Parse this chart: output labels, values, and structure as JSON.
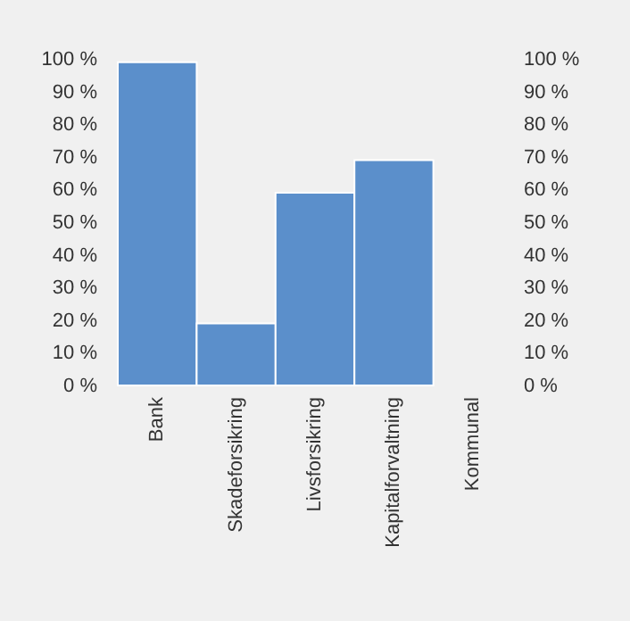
{
  "chart_data": {
    "type": "bar",
    "categories": [
      "Bank",
      "Skadeforsikring",
      "Livsforsikring",
      "Kapitalforvaltning",
      "Kommunal"
    ],
    "values": [
      99,
      19,
      59,
      69,
      null
    ],
    "color": "#5b8fcb",
    "ylim": [
      0,
      100
    ],
    "yticks": [
      {
        "value": 0,
        "label": "0 %"
      },
      {
        "value": 10,
        "label": "10 %"
      },
      {
        "value": 20,
        "label": "20 %"
      },
      {
        "value": 30,
        "label": "30 %"
      },
      {
        "value": 40,
        "label": "40 %"
      },
      {
        "value": 50,
        "label": "50 %"
      },
      {
        "value": 60,
        "label": "60 %"
      },
      {
        "value": 70,
        "label": "70 %"
      },
      {
        "value": 80,
        "label": "80 %"
      },
      {
        "value": 90,
        "label": "90 %"
      },
      {
        "value": 100,
        "label": "100 %"
      }
    ],
    "y2lim": [
      0,
      100
    ],
    "y2ticks": [
      {
        "value": 0,
        "label": "0 %"
      },
      {
        "value": 10,
        "label": "10 %"
      },
      {
        "value": 20,
        "label": "20 %"
      },
      {
        "value": 30,
        "label": "30 %"
      },
      {
        "value": 40,
        "label": "40 %"
      },
      {
        "value": 50,
        "label": "50 %"
      },
      {
        "value": 60,
        "label": "60 %"
      },
      {
        "value": 70,
        "label": "70 %"
      },
      {
        "value": 80,
        "label": "80 %"
      },
      {
        "value": 90,
        "label": "90 %"
      },
      {
        "value": 100,
        "label": "100 %"
      }
    ],
    "grid": false
  }
}
